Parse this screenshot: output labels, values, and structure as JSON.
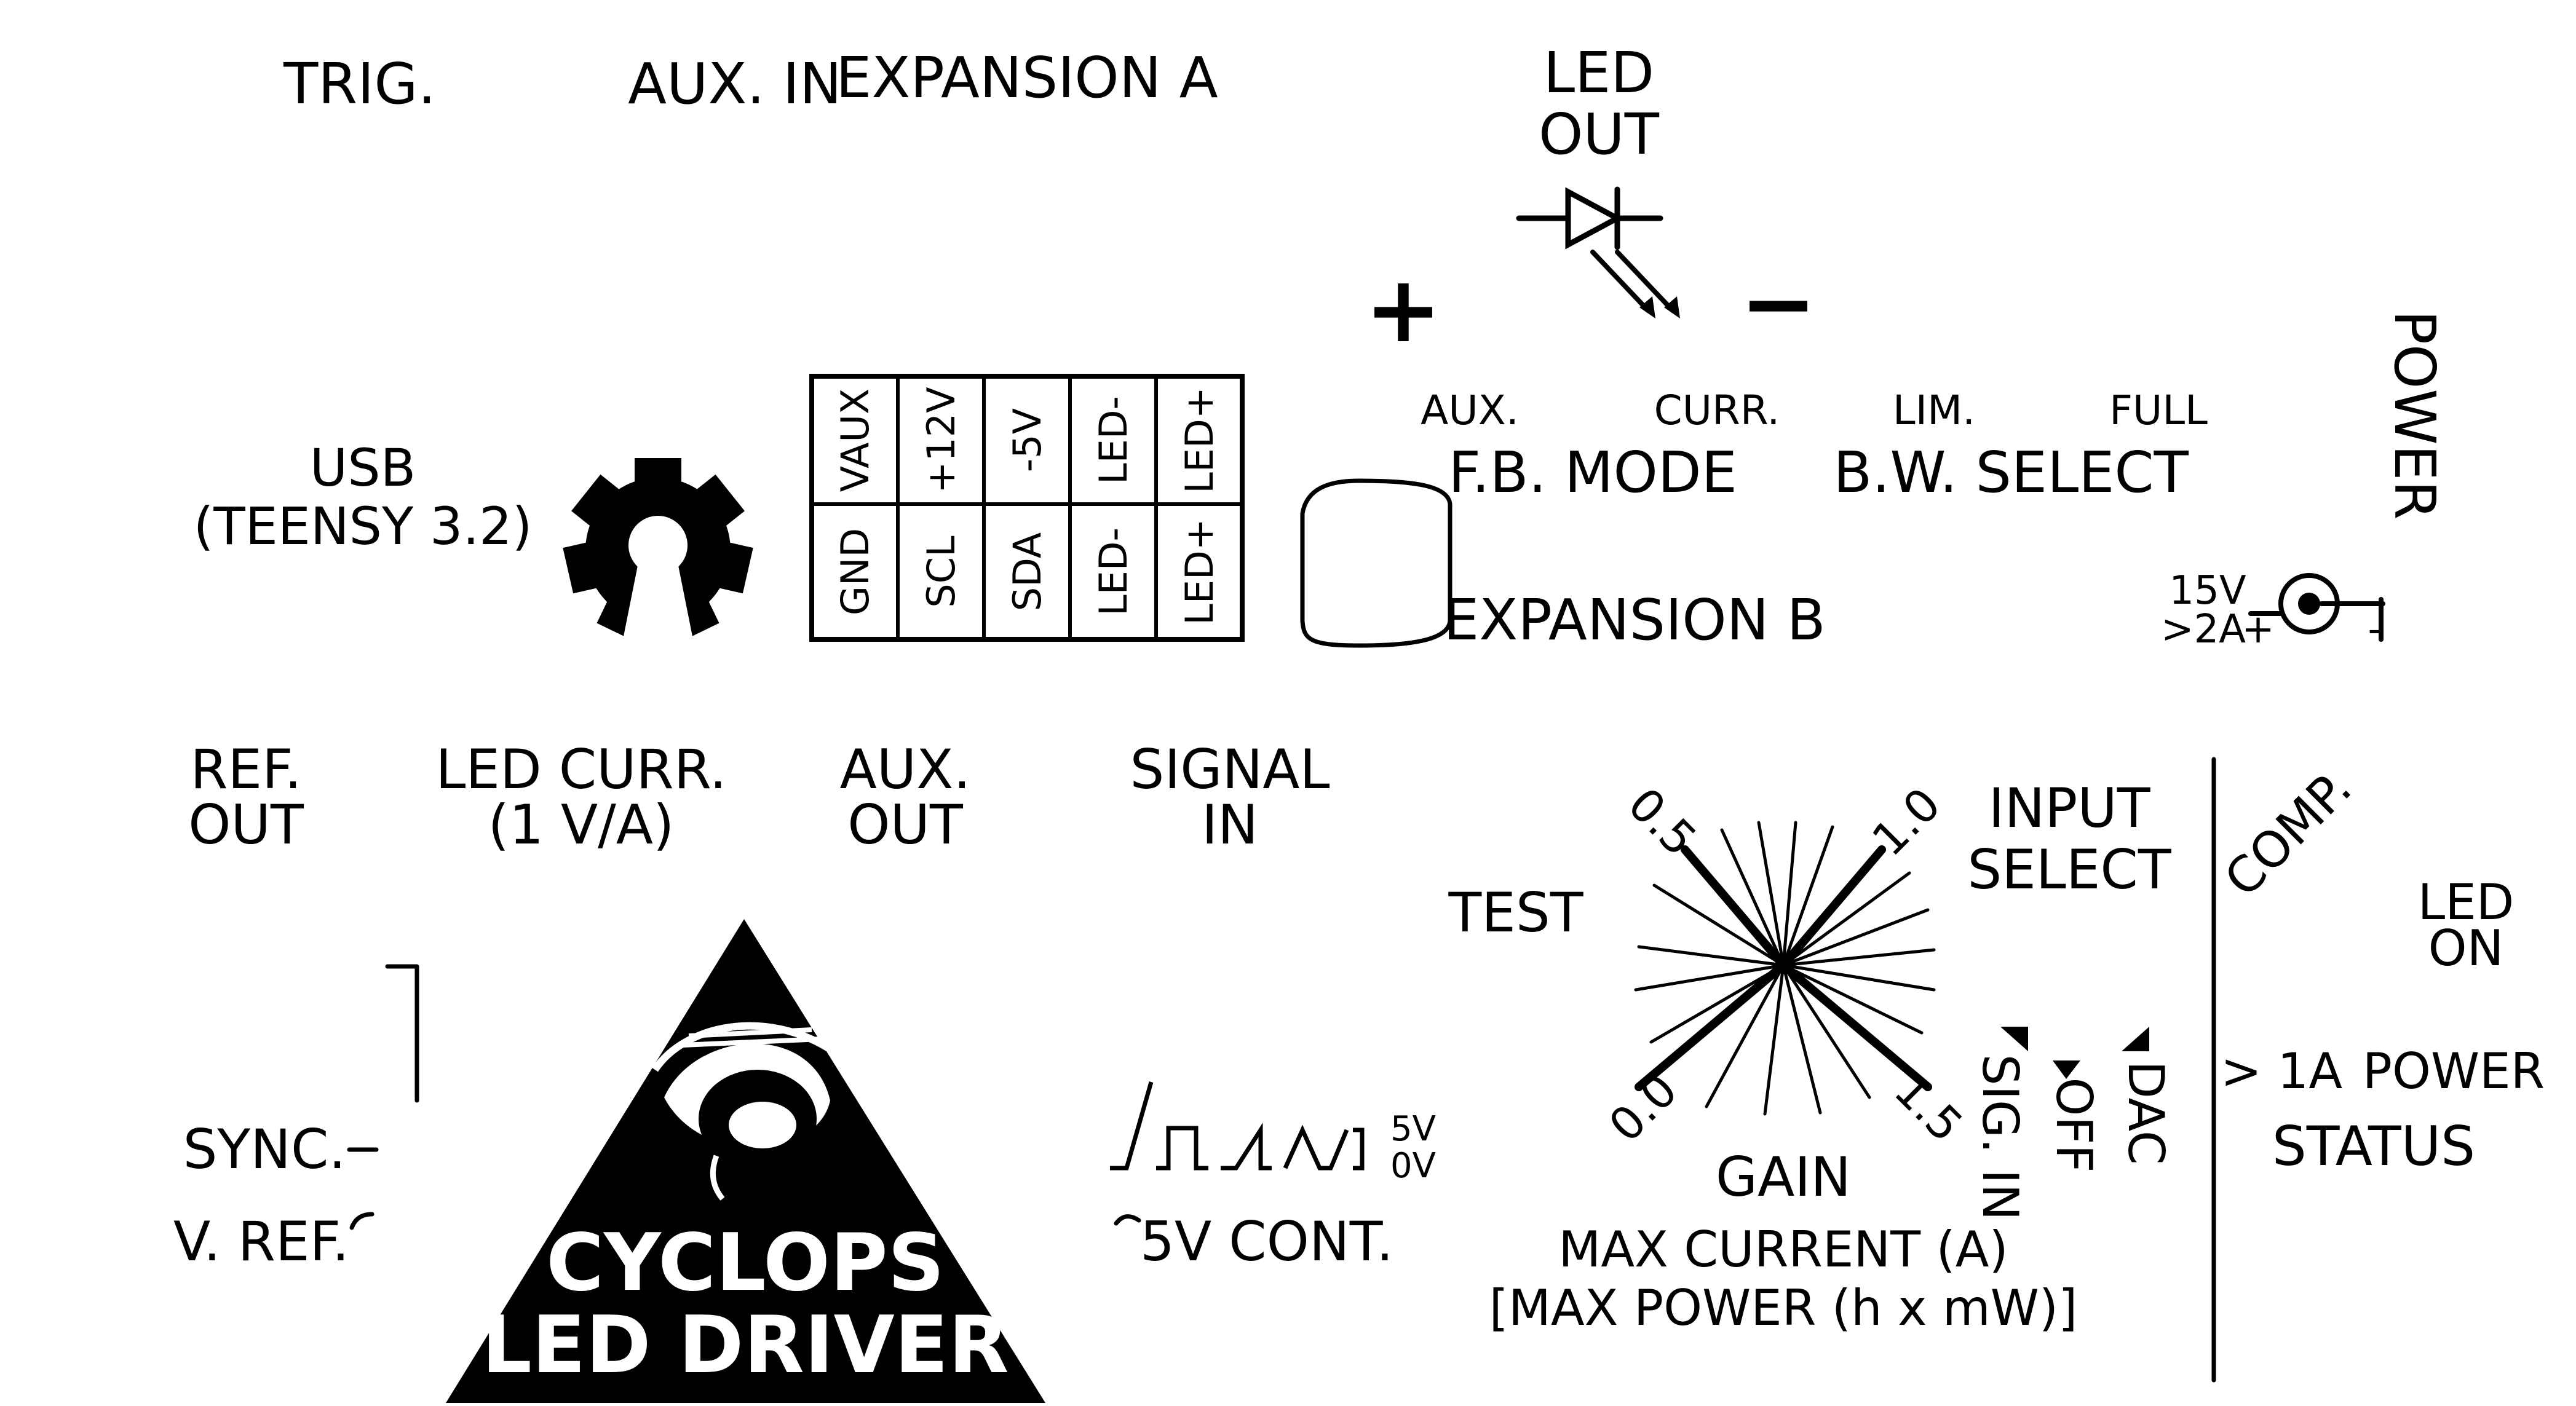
{
  "top": {
    "trig": "TRIG.",
    "aux_in": "AUX. IN",
    "expansion_a": "EXPANSION A",
    "led_out_1": "LED",
    "led_out_2": "OUT",
    "plus": "+",
    "minus": "−"
  },
  "usb": {
    "line1": "USB",
    "line2": "(TEENSY 3.2)"
  },
  "expansion_a_pins": {
    "top_row": [
      "VAUX",
      "+12V",
      "-5V",
      "LED-",
      "LED+"
    ],
    "bottom_row": [
      "GND",
      "SCL",
      "SDA",
      "LED-",
      "LED+"
    ]
  },
  "feedback": {
    "aux": "AUX.",
    "curr": "CURR.",
    "mode": "F.B. MODE",
    "lim": "LIM.",
    "full": "FULL",
    "bw_select": "B.W. SELECT"
  },
  "expansion_b": "EXPANSION B",
  "power": {
    "title": "POWER",
    "voltage": "15V",
    "current": ">2A",
    "plus": "+",
    "minus": "-"
  },
  "outputs": {
    "ref_out_1": "REF.",
    "ref_out_2": "OUT",
    "led_curr_1": "LED CURR.",
    "led_curr_2": "(1 V/A)",
    "aux_out_1": "AUX.",
    "aux_out_2": "OUT",
    "signal_in_1": "SIGNAL",
    "signal_in_2": "IN"
  },
  "sync": {
    "sync_label": "SYNC.",
    "vref_label": "V. REF."
  },
  "logo": {
    "line1": "CYCLOPS",
    "line2": "LED DRIVER"
  },
  "signal_legend": {
    "high": "5V",
    "low": "0V",
    "cont": "5V CONT."
  },
  "gain": {
    "test": "TEST",
    "tick_min": "0.0",
    "tick_low": "0.5",
    "tick_high": "1.0",
    "tick_max": "1.5",
    "title": "GAIN",
    "max_current": "MAX CURRENT (A)",
    "max_power": "[MAX POWER (h x mW)]"
  },
  "input_select": {
    "line1": "INPUT",
    "line2": "SELECT",
    "opt_sig_in": "SIG. IN",
    "opt_off": "OFF",
    "opt_dac": "DAC"
  },
  "status": {
    "comp": "COMP.",
    "led_on_1": "LED",
    "led_on_2": "ON",
    "over_1a": "> 1A",
    "power": "POWER",
    "title": "STATUS"
  }
}
